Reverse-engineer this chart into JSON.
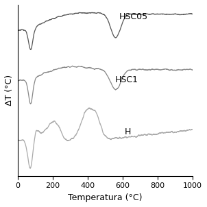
{
  "xlabel": "Temperatura (°C)",
  "ylabel": "ΔT (°C)",
  "xlim": [
    0,
    1000
  ],
  "xticks": [
    0,
    200,
    400,
    600,
    800,
    1000
  ],
  "background_color": "#ffffff",
  "curve_color_HSC05": "#555555",
  "curve_color_HSC1": "#888888",
  "curve_color_H": "#aaaaaa",
  "label_HSC05": "HSC05",
  "label_HSC1": "HSC1",
  "label_H": "H",
  "label_fontsize": 9,
  "axis_fontsize": 9,
  "tick_fontsize": 8
}
